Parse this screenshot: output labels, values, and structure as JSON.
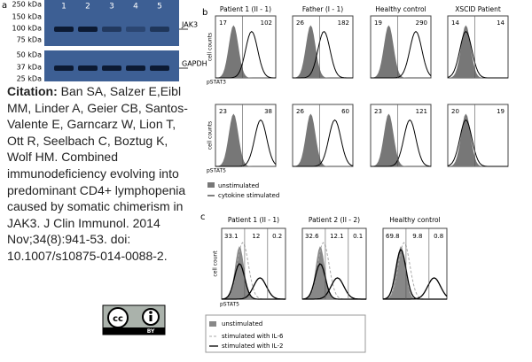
{
  "panel_a": {
    "label": "a",
    "mw_top": [
      "250 kDa",
      "150 kDa",
      "100 kDa",
      "75 kDa"
    ],
    "mw_bottom": [
      "50 kDa",
      "37 kDa",
      "25 kDa"
    ],
    "lanes": [
      "1",
      "2",
      "3",
      "4",
      "5"
    ],
    "bands": [
      "JAK3",
      "GAPDH"
    ]
  },
  "citation": {
    "label": "Citation:",
    "text": "Ban SA, Salzer E,Eibl MM, Linder A, Geier CB, Santos-Valente E, Garncarz W, Lion T, Ott R, Seelbach C, Boztug K, Wolf HM. Combined immunodeficiency evolving into predominant CD4+ lymphopenia caused by somatic chimerism in JAK3. J Clin Immunol. 2014 Nov;34(8):941-53. doi: 10.1007/s10875-014-0088-2."
  },
  "license": {
    "mark": "cc",
    "by": "BY"
  },
  "panel_b": {
    "label": "b",
    "columns": [
      "Patient 1 (II - 1)",
      "Father (I - 1)",
      "Healthy control",
      "XSCID Patient"
    ],
    "rows": [
      {
        "xlabel": "pSTAT3",
        "ylabel": "cell counts",
        "values": [
          [
            "17",
            "102"
          ],
          [
            "26",
            "182"
          ],
          [
            "19",
            "290"
          ],
          [
            "14",
            "14"
          ]
        ]
      },
      {
        "xlabel": "pSTAT5",
        "ylabel": "cell counts",
        "values": [
          [
            "23",
            "38"
          ],
          [
            "26",
            "60"
          ],
          [
            "23",
            "121"
          ],
          [
            "20",
            "19"
          ]
        ]
      }
    ],
    "legend": [
      "unstimulated",
      "cytokine stimulated"
    ]
  },
  "panel_c": {
    "label": "c",
    "columns": [
      "Patient 1 (II - 1)",
      "Patient 2 (II - 2)",
      "Healthy control"
    ],
    "xlabel": "pSTAT5",
    "ylabel": "cell count",
    "values": [
      [
        "33.1",
        "12",
        "0.2"
      ],
      [
        "32.6",
        "12.1",
        "0.1"
      ],
      [
        "69.8",
        "9.8",
        "0.8"
      ]
    ],
    "legend": [
      "unstimulated",
      "stimulated with IL-6",
      "stimulated with IL-2"
    ]
  }
}
